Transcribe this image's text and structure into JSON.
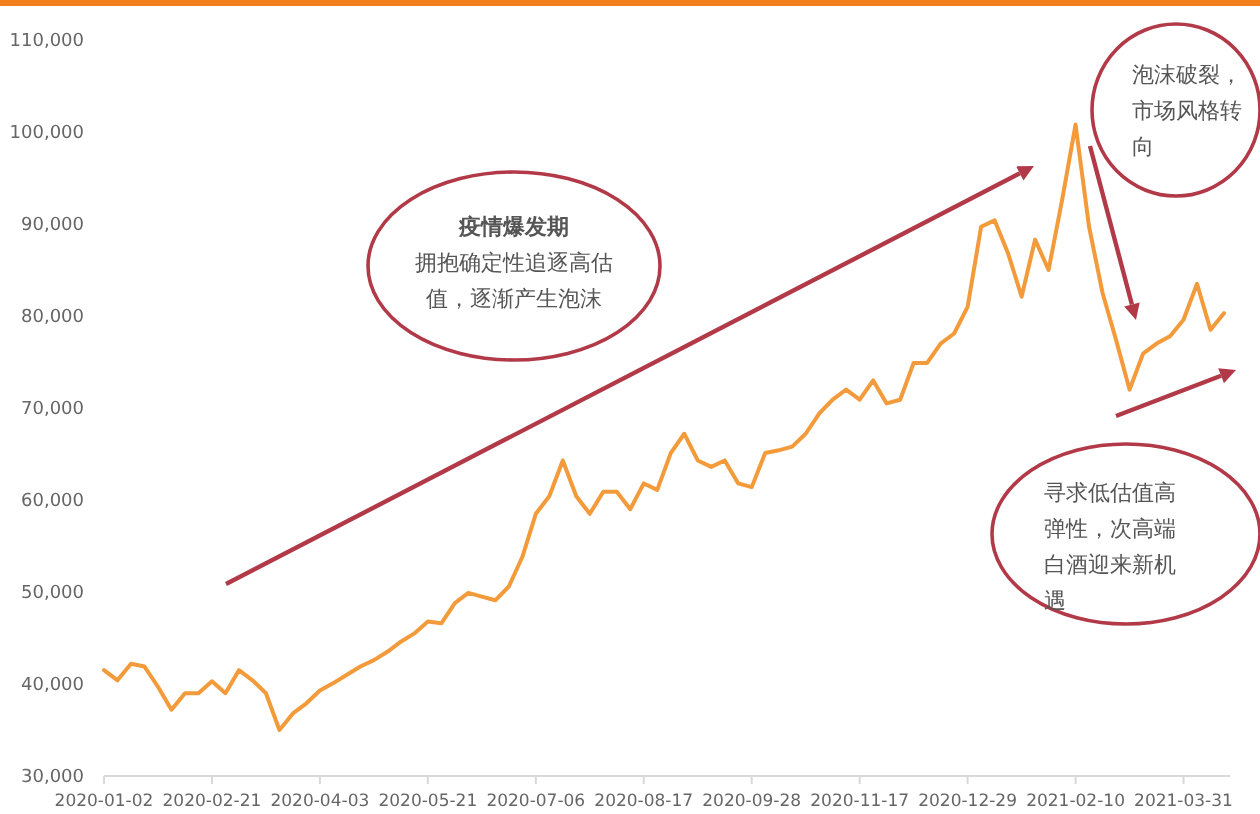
{
  "chart_data": {
    "type": "line",
    "categories": [
      "2020-01-02",
      null,
      null,
      null,
      null,
      null,
      null,
      null,
      "2020-02-21",
      null,
      null,
      null,
      null,
      null,
      null,
      null,
      "2020-04-03",
      null,
      null,
      null,
      null,
      null,
      null,
      null,
      "2020-05-21",
      null,
      null,
      null,
      null,
      null,
      null,
      null,
      "2020-07-06",
      null,
      null,
      null,
      null,
      null,
      null,
      null,
      "2020-08-17",
      null,
      null,
      null,
      null,
      null,
      null,
      null,
      "2020-09-28",
      null,
      null,
      null,
      null,
      null,
      null,
      null,
      "2020-11-17",
      null,
      null,
      null,
      null,
      null,
      null,
      null,
      "2020-12-29",
      null,
      null,
      null,
      null,
      null,
      null,
      null,
      "2021-02-10",
      null,
      null,
      null,
      null,
      null,
      null,
      null,
      "2021-03-31",
      null,
      null,
      null
    ],
    "series": [
      {
        "color": "#f39a3b",
        "values": [
          41500,
          40400,
          42200,
          41900,
          39700,
          37200,
          39000,
          39000,
          40300,
          39000,
          41500,
          40400,
          39000,
          35000,
          36800,
          37900,
          39300,
          40100,
          41000,
          41900,
          42600,
          43500,
          44600,
          45500,
          46800,
          46600,
          48800,
          49900,
          49500,
          49100,
          50600,
          53800,
          58500,
          60400,
          64300,
          60400,
          58500,
          60900,
          60900,
          59000,
          61800,
          61100,
          65100,
          67200,
          64300,
          63600,
          64300,
          61800,
          61400,
          65100,
          65400,
          65800,
          67200,
          69400,
          70900,
          72000,
          70900,
          73000,
          70500,
          70900,
          74900,
          74900,
          77000,
          78100,
          81000,
          89700,
          90400,
          86800,
          82100,
          88300,
          85000,
          92600,
          100800,
          89700,
          82500,
          77400,
          72000,
          75900,
          77000,
          77800,
          79600,
          83500,
          78500,
          80300
        ]
      }
    ],
    "ylim": [
      30000,
      110000
    ],
    "yticks": [
      {
        "value": 30000,
        "label": "30,000"
      },
      {
        "value": 40000,
        "label": "40,000"
      },
      {
        "value": 50000,
        "label": "50,000"
      },
      {
        "value": 60000,
        "label": "60,000"
      },
      {
        "value": 70000,
        "label": "70,000"
      },
      {
        "value": 80000,
        "label": "80,000"
      },
      {
        "value": 90000,
        "label": "90,000"
      },
      {
        "value": 100000,
        "label": "100,000"
      },
      {
        "value": 110000,
        "label": "110,000"
      }
    ],
    "grid": false,
    "marker": "none",
    "line_style": "solid",
    "annotations": [
      "疫情爆发期",
      "拥抱确定性追逐高估值，逐渐产生泡沫",
      "泡沫破裂，市场风格转向",
      "寻求低估值高弹性，次高端白酒迎来新机遇"
    ]
  }
}
